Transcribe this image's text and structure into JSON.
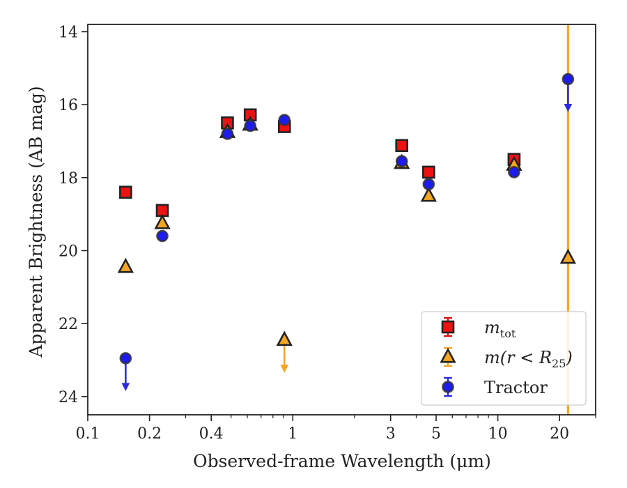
{
  "chart_data": {
    "type": "scatter",
    "xscale": "log",
    "yaxis_inverted": true,
    "xlim": [
      0.1,
      30
    ],
    "ylim": [
      24.5,
      13.8
    ],
    "xlabel": "Observed-frame Wavelength (μm)",
    "ylabel": "Apparent Brightness (AB mag)",
    "xticks": [
      {
        "value": 0.1,
        "label": "0.1"
      },
      {
        "value": 0.2,
        "label": "0.2"
      },
      {
        "value": 0.4,
        "label": "0.4"
      },
      {
        "value": 1,
        "label": "1"
      },
      {
        "value": 3,
        "label": "3"
      },
      {
        "value": 5,
        "label": "5"
      },
      {
        "value": 10,
        "label": "10"
      },
      {
        "value": 20,
        "label": "20"
      }
    ],
    "yticks": [
      {
        "value": 14,
        "label": "14"
      },
      {
        "value": 16,
        "label": "16"
      },
      {
        "value": 18,
        "label": "18"
      },
      {
        "value": 20,
        "label": "20"
      },
      {
        "value": 22,
        "label": "22"
      },
      {
        "value": 24,
        "label": "24"
      }
    ],
    "vline": {
      "x": 22,
      "color": "#f5a623"
    },
    "legend_position": "bottom-right",
    "series": [
      {
        "name": "m_tot",
        "legend_main": "m",
        "legend_sub": "tot",
        "marker": "square",
        "fill": "#ee1111",
        "edge": "#222222",
        "errcolor": "#dd1111",
        "points": [
          {
            "x": 0.153,
            "y": 18.4
          },
          {
            "x": 0.231,
            "y": 18.9
          },
          {
            "x": 0.48,
            "y": 16.5
          },
          {
            "x": 0.62,
            "y": 16.28
          },
          {
            "x": 0.91,
            "y": 16.6
          },
          {
            "x": 3.4,
            "y": 17.12
          },
          {
            "x": 4.6,
            "y": 17.85
          },
          {
            "x": 12.0,
            "y": 17.5
          }
        ]
      },
      {
        "name": "m(r < R25)",
        "legend_main": "m(r < R",
        "legend_sub": "25",
        "legend_tail": ")",
        "marker": "triangle",
        "fill": "#f5a623",
        "edge": "#222222",
        "errcolor": "#f5a623",
        "points": [
          {
            "x": 0.153,
            "y": 20.45
          },
          {
            "x": 0.231,
            "y": 19.25
          },
          {
            "x": 0.48,
            "y": 16.75
          },
          {
            "x": 0.62,
            "y": 16.55
          },
          {
            "x": 0.91,
            "y": 22.45,
            "upper_limit": true
          },
          {
            "x": 3.4,
            "y": 17.6
          },
          {
            "x": 4.6,
            "y": 18.5
          },
          {
            "x": 12.0,
            "y": 17.65
          },
          {
            "x": 22.0,
            "y": 20.2
          }
        ]
      },
      {
        "name": "Tractor",
        "legend_main": "Tractor",
        "marker": "circle",
        "fill": "#1c1cee",
        "edge": "#333333",
        "errcolor": "#2b2bdd",
        "points": [
          {
            "x": 0.153,
            "y": 22.95,
            "upper_limit": true
          },
          {
            "x": 0.231,
            "y": 19.6
          },
          {
            "x": 0.48,
            "y": 16.8
          },
          {
            "x": 0.62,
            "y": 16.58
          },
          {
            "x": 0.91,
            "y": 16.42
          },
          {
            "x": 3.4,
            "y": 17.55
          },
          {
            "x": 4.6,
            "y": 18.18
          },
          {
            "x": 12.0,
            "y": 17.85
          },
          {
            "x": 22.0,
            "y": 15.3,
            "upper_limit": true
          }
        ]
      }
    ]
  }
}
